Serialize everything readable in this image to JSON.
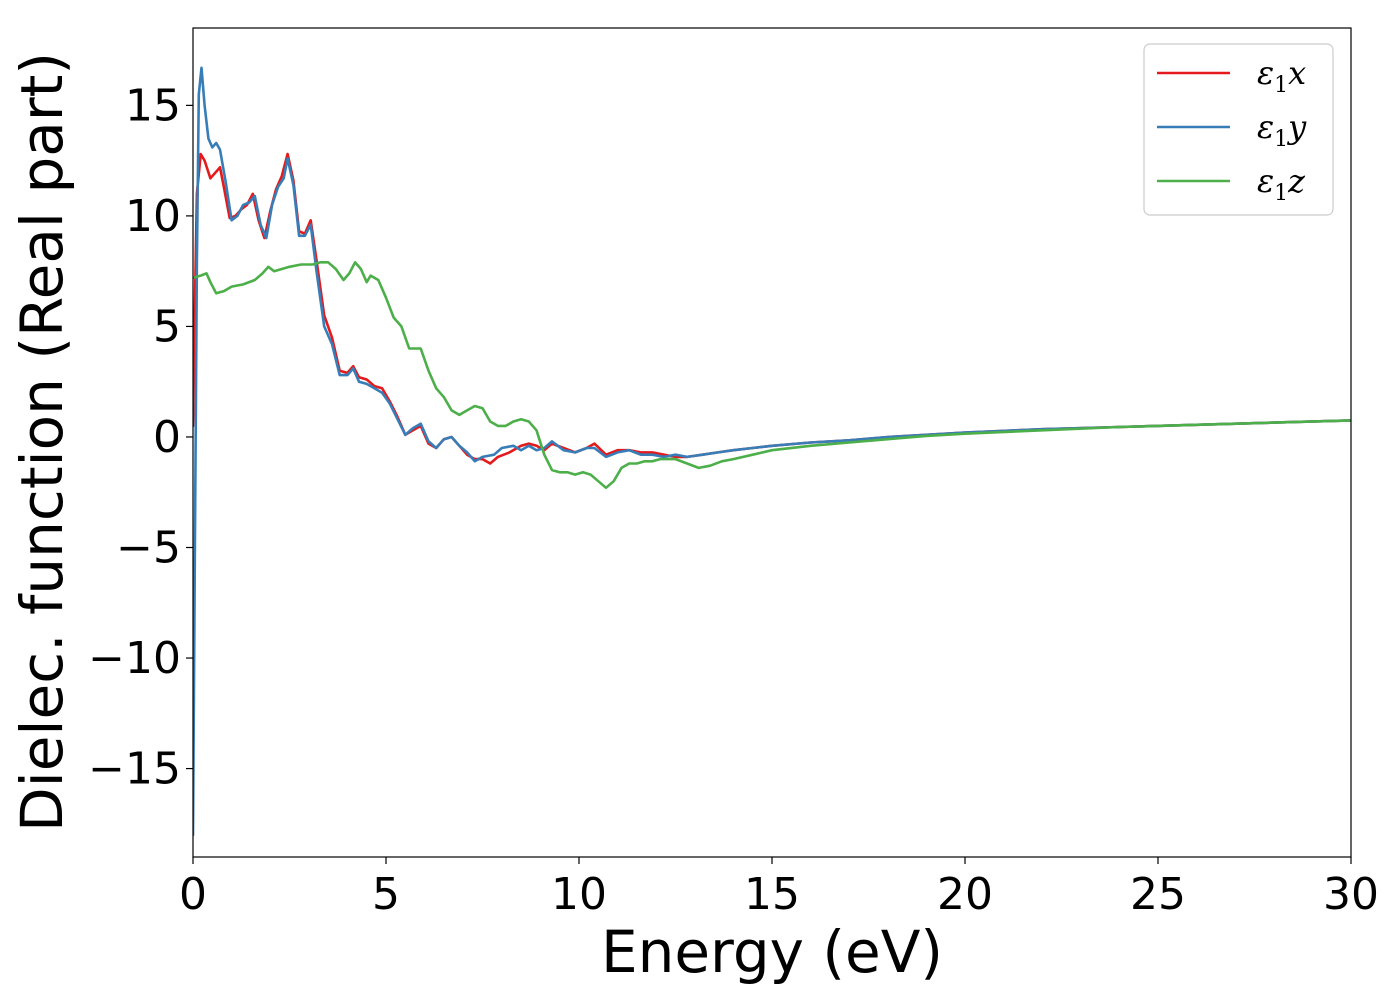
{
  "chart_data": {
    "type": "line",
    "title": "",
    "xlabel": "Energy (eV)",
    "ylabel": "Dielec. function (Real part)",
    "xlim": [
      0,
      30
    ],
    "ylim": [
      -19.0,
      18.5
    ],
    "xticks": [
      0,
      5,
      10,
      15,
      20,
      25,
      30
    ],
    "xtick_labels": [
      "0",
      "5",
      "10",
      "15",
      "20",
      "25",
      "30"
    ],
    "yticks": [
      -15,
      -10,
      -5,
      0,
      5,
      10,
      15
    ],
    "ytick_labels": [
      "−15",
      "−10",
      "−5",
      "0",
      "5",
      "10",
      "15"
    ],
    "grid": false,
    "legend_position": "top-right",
    "series": [
      {
        "name": "ε₁x",
        "legend_main": "ε",
        "legend_sub": "1",
        "legend_suffix": "x",
        "color": "#e41a1c",
        "points": [
          [
            0,
            0.5
          ],
          [
            0.05,
            6
          ],
          [
            0.1,
            11
          ],
          [
            0.2,
            12.8
          ],
          [
            0.3,
            12.5
          ],
          [
            0.45,
            11.7
          ],
          [
            0.6,
            12.0
          ],
          [
            0.7,
            12.2
          ],
          [
            0.8,
            11.3
          ],
          [
            0.95,
            9.9
          ],
          [
            1.1,
            10.0
          ],
          [
            1.25,
            10.3
          ],
          [
            1.4,
            10.5
          ],
          [
            1.55,
            11.0
          ],
          [
            1.7,
            9.8
          ],
          [
            1.85,
            9.0
          ],
          [
            2.0,
            10.2
          ],
          [
            2.15,
            11.2
          ],
          [
            2.3,
            11.8
          ],
          [
            2.45,
            12.8
          ],
          [
            2.6,
            11.6
          ],
          [
            2.75,
            9.3
          ],
          [
            2.9,
            9.2
          ],
          [
            3.05,
            9.8
          ],
          [
            3.2,
            8.0
          ],
          [
            3.4,
            5.5
          ],
          [
            3.6,
            4.5
          ],
          [
            3.8,
            3.0
          ],
          [
            4.0,
            2.9
          ],
          [
            4.15,
            3.2
          ],
          [
            4.3,
            2.7
          ],
          [
            4.5,
            2.6
          ],
          [
            4.7,
            2.3
          ],
          [
            4.9,
            2.2
          ],
          [
            5.1,
            1.6
          ],
          [
            5.3,
            0.9
          ],
          [
            5.5,
            0.1
          ],
          [
            5.7,
            0.3
          ],
          [
            5.9,
            0.5
          ],
          [
            6.1,
            -0.3
          ],
          [
            6.3,
            -0.5
          ],
          [
            6.5,
            -0.1
          ],
          [
            6.7,
            0.0
          ],
          [
            6.9,
            -0.4
          ],
          [
            7.1,
            -0.8
          ],
          [
            7.3,
            -1.0
          ],
          [
            7.5,
            -1.0
          ],
          [
            7.7,
            -1.2
          ],
          [
            7.9,
            -0.9
          ],
          [
            8.2,
            -0.7
          ],
          [
            8.5,
            -0.4
          ],
          [
            8.7,
            -0.3
          ],
          [
            8.9,
            -0.4
          ],
          [
            9.1,
            -0.6
          ],
          [
            9.3,
            -0.3
          ],
          [
            9.6,
            -0.5
          ],
          [
            9.9,
            -0.7
          ],
          [
            10.2,
            -0.5
          ],
          [
            10.4,
            -0.3
          ],
          [
            10.7,
            -0.8
          ],
          [
            11.0,
            -0.6
          ],
          [
            11.3,
            -0.6
          ],
          [
            11.6,
            -0.7
          ],
          [
            11.9,
            -0.7
          ],
          [
            12.2,
            -0.8
          ],
          [
            12.5,
            -0.9
          ],
          [
            12.8,
            -0.9
          ],
          [
            13.2,
            -0.8
          ],
          [
            13.6,
            -0.7
          ],
          [
            14.0,
            -0.6
          ],
          [
            14.5,
            -0.5
          ],
          [
            15.0,
            -0.4
          ],
          [
            16.0,
            -0.25
          ],
          [
            17.0,
            -0.15
          ],
          [
            18.0,
            0.0
          ],
          [
            19.0,
            0.1
          ],
          [
            20.0,
            0.2
          ],
          [
            22.0,
            0.35
          ],
          [
            24.0,
            0.45
          ],
          [
            26.0,
            0.55
          ],
          [
            28.0,
            0.65
          ],
          [
            30.0,
            0.75
          ]
        ]
      },
      {
        "name": "ε₁y",
        "legend_main": "ε",
        "legend_sub": "1",
        "legend_suffix": "y",
        "color": "#377eb8",
        "points": [
          [
            0,
            -18.0
          ],
          [
            0.05,
            -5
          ],
          [
            0.1,
            8
          ],
          [
            0.15,
            15.5
          ],
          [
            0.22,
            16.7
          ],
          [
            0.3,
            15.0
          ],
          [
            0.4,
            13.5
          ],
          [
            0.5,
            13.1
          ],
          [
            0.6,
            13.3
          ],
          [
            0.7,
            13.0
          ],
          [
            0.85,
            11.5
          ],
          [
            1.0,
            9.8
          ],
          [
            1.15,
            10.0
          ],
          [
            1.3,
            10.5
          ],
          [
            1.45,
            10.6
          ],
          [
            1.6,
            10.9
          ],
          [
            1.75,
            9.6
          ],
          [
            1.9,
            9.0
          ],
          [
            2.05,
            10.5
          ],
          [
            2.2,
            11.3
          ],
          [
            2.35,
            11.7
          ],
          [
            2.45,
            12.6
          ],
          [
            2.6,
            11.4
          ],
          [
            2.75,
            9.1
          ],
          [
            2.9,
            9.1
          ],
          [
            3.05,
            9.6
          ],
          [
            3.2,
            7.5
          ],
          [
            3.4,
            5.0
          ],
          [
            3.6,
            4.2
          ],
          [
            3.8,
            2.8
          ],
          [
            4.0,
            2.8
          ],
          [
            4.15,
            3.1
          ],
          [
            4.3,
            2.5
          ],
          [
            4.5,
            2.4
          ],
          [
            4.7,
            2.2
          ],
          [
            4.9,
            2.0
          ],
          [
            5.1,
            1.5
          ],
          [
            5.3,
            0.8
          ],
          [
            5.5,
            0.1
          ],
          [
            5.7,
            0.4
          ],
          [
            5.9,
            0.6
          ],
          [
            6.1,
            -0.2
          ],
          [
            6.3,
            -0.5
          ],
          [
            6.5,
            -0.1
          ],
          [
            6.7,
            0.0
          ],
          [
            6.9,
            -0.4
          ],
          [
            7.1,
            -0.7
          ],
          [
            7.3,
            -1.1
          ],
          [
            7.5,
            -0.9
          ],
          [
            7.8,
            -0.8
          ],
          [
            8.0,
            -0.5
          ],
          [
            8.3,
            -0.4
          ],
          [
            8.5,
            -0.6
          ],
          [
            8.7,
            -0.4
          ],
          [
            8.9,
            -0.6
          ],
          [
            9.1,
            -0.5
          ],
          [
            9.3,
            -0.2
          ],
          [
            9.6,
            -0.6
          ],
          [
            9.9,
            -0.7
          ],
          [
            10.2,
            -0.5
          ],
          [
            10.4,
            -0.5
          ],
          [
            10.7,
            -0.9
          ],
          [
            11.0,
            -0.7
          ],
          [
            11.3,
            -0.6
          ],
          [
            11.6,
            -0.8
          ],
          [
            11.9,
            -0.8
          ],
          [
            12.2,
            -0.9
          ],
          [
            12.5,
            -0.8
          ],
          [
            12.8,
            -0.9
          ],
          [
            13.2,
            -0.8
          ],
          [
            13.6,
            -0.7
          ],
          [
            14.0,
            -0.6
          ],
          [
            14.5,
            -0.5
          ],
          [
            15.0,
            -0.4
          ],
          [
            16.0,
            -0.25
          ],
          [
            17.0,
            -0.15
          ],
          [
            18.0,
            0.0
          ],
          [
            19.0,
            0.1
          ],
          [
            20.0,
            0.2
          ],
          [
            22.0,
            0.35
          ],
          [
            24.0,
            0.45
          ],
          [
            26.0,
            0.55
          ],
          [
            28.0,
            0.65
          ],
          [
            30.0,
            0.75
          ]
        ]
      },
      {
        "name": "ε₁z",
        "legend_main": "ε",
        "legend_sub": "1",
        "legend_suffix": "z",
        "color": "#4daf4a",
        "points": [
          [
            0,
            7.2
          ],
          [
            0.2,
            7.3
          ],
          [
            0.35,
            7.4
          ],
          [
            0.45,
            7.0
          ],
          [
            0.6,
            6.5
          ],
          [
            0.8,
            6.6
          ],
          [
            1.0,
            6.8
          ],
          [
            1.3,
            6.9
          ],
          [
            1.6,
            7.1
          ],
          [
            1.8,
            7.4
          ],
          [
            1.95,
            7.7
          ],
          [
            2.1,
            7.5
          ],
          [
            2.3,
            7.6
          ],
          [
            2.5,
            7.7
          ],
          [
            2.8,
            7.8
          ],
          [
            3.1,
            7.8
          ],
          [
            3.3,
            7.9
          ],
          [
            3.5,
            7.9
          ],
          [
            3.7,
            7.6
          ],
          [
            3.9,
            7.1
          ],
          [
            4.05,
            7.4
          ],
          [
            4.2,
            7.9
          ],
          [
            4.35,
            7.6
          ],
          [
            4.5,
            7.0
          ],
          [
            4.6,
            7.3
          ],
          [
            4.8,
            7.1
          ],
          [
            5.0,
            6.3
          ],
          [
            5.2,
            5.4
          ],
          [
            5.4,
            5.0
          ],
          [
            5.6,
            4.0
          ],
          [
            5.9,
            4.0
          ],
          [
            6.1,
            3.0
          ],
          [
            6.3,
            2.2
          ],
          [
            6.5,
            1.8
          ],
          [
            6.7,
            1.2
          ],
          [
            6.9,
            1.0
          ],
          [
            7.1,
            1.2
          ],
          [
            7.3,
            1.4
          ],
          [
            7.5,
            1.3
          ],
          [
            7.7,
            0.7
          ],
          [
            7.9,
            0.5
          ],
          [
            8.1,
            0.5
          ],
          [
            8.3,
            0.7
          ],
          [
            8.5,
            0.8
          ],
          [
            8.7,
            0.7
          ],
          [
            8.9,
            0.3
          ],
          [
            9.1,
            -0.8
          ],
          [
            9.3,
            -1.5
          ],
          [
            9.5,
            -1.6
          ],
          [
            9.7,
            -1.6
          ],
          [
            9.9,
            -1.7
          ],
          [
            10.1,
            -1.6
          ],
          [
            10.3,
            -1.7
          ],
          [
            10.5,
            -2.0
          ],
          [
            10.7,
            -2.3
          ],
          [
            10.9,
            -2.0
          ],
          [
            11.1,
            -1.4
          ],
          [
            11.3,
            -1.2
          ],
          [
            11.5,
            -1.2
          ],
          [
            11.7,
            -1.1
          ],
          [
            11.9,
            -1.1
          ],
          [
            12.1,
            -1.0
          ],
          [
            12.3,
            -1.0
          ],
          [
            12.5,
            -1.0
          ],
          [
            12.8,
            -1.2
          ],
          [
            13.1,
            -1.4
          ],
          [
            13.4,
            -1.3
          ],
          [
            13.7,
            -1.1
          ],
          [
            14.0,
            -1.0
          ],
          [
            14.5,
            -0.8
          ],
          [
            15.0,
            -0.6
          ],
          [
            16.0,
            -0.4
          ],
          [
            17.0,
            -0.25
          ],
          [
            18.0,
            -0.1
          ],
          [
            19.0,
            0.05
          ],
          [
            20.0,
            0.15
          ],
          [
            22.0,
            0.3
          ],
          [
            24.0,
            0.45
          ],
          [
            26.0,
            0.55
          ],
          [
            28.0,
            0.65
          ],
          [
            30.0,
            0.75
          ]
        ]
      }
    ]
  }
}
